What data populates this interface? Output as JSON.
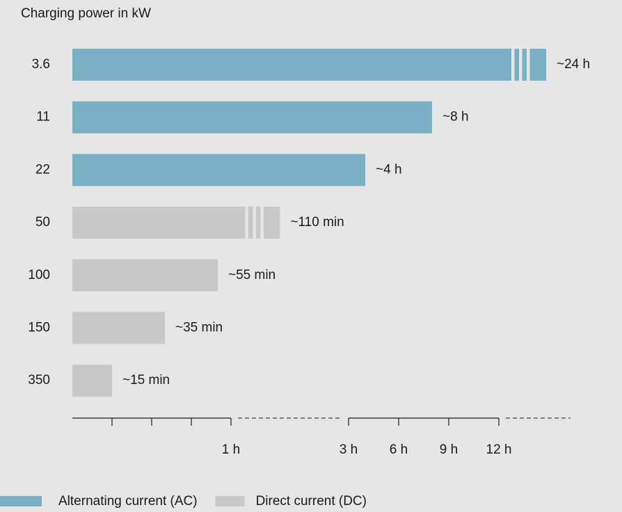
{
  "chart_data": {
    "type": "bar",
    "orientation": "horizontal",
    "title": "Charging power in kW",
    "categories": [
      "3.6",
      "11",
      "22",
      "50",
      "100",
      "150",
      "350"
    ],
    "series": [
      {
        "name": "Alternating current (AC)",
        "color": "#7aafc4",
        "values": [
          24,
          8,
          4,
          null,
          null,
          null,
          null
        ],
        "value_labels": [
          "~24 h",
          "~8 h",
          "~4 h",
          null,
          null,
          null,
          null
        ]
      },
      {
        "name": "Direct current (DC)",
        "color": "#c8c8c8",
        "values": [
          null,
          null,
          null,
          1.8333,
          0.9167,
          0.5833,
          0.25
        ],
        "value_labels": [
          null,
          null,
          null,
          "~110 min",
          "~55 min",
          "~35 min",
          "~15 min"
        ]
      }
    ],
    "xlim": [
      0,
      24
    ],
    "x_breaks": [
      [
        1,
        3
      ],
      [
        12,
        24
      ]
    ],
    "xticks": [
      {
        "value": 1,
        "label": "1 h"
      },
      {
        "value": 3,
        "label": "3 h"
      },
      {
        "value": 6,
        "label": "6 h"
      },
      {
        "value": 9,
        "label": "9 h"
      },
      {
        "value": 12,
        "label": "12 h"
      }
    ],
    "minor_xticks": [
      0.25,
      0.5,
      0.75
    ],
    "legend": "bottom-left"
  }
}
